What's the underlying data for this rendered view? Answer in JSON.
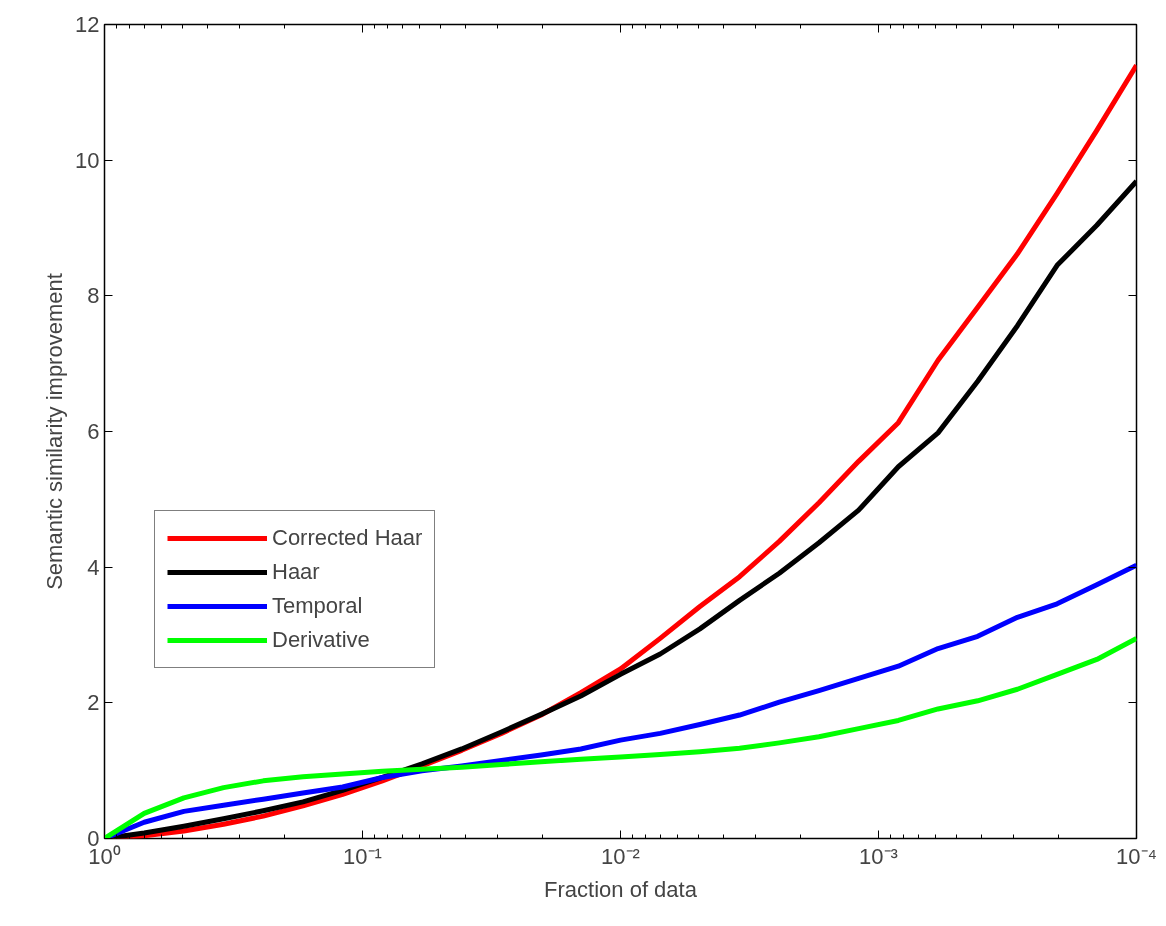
{
  "chart_data": {
    "type": "line",
    "xlabel": "Fraction of data",
    "ylabel": "Semantic similarity improvement",
    "log": "x",
    "xlim": [
      1,
      0.0001
    ],
    "ylim": [
      0,
      12
    ],
    "xticks": [
      {
        "value": 1,
        "label": "10⁰"
      },
      {
        "value": 0.1,
        "label": "10⁻¹"
      },
      {
        "value": 0.01,
        "label": "10⁻²"
      },
      {
        "value": 0.001,
        "label": "10⁻³"
      },
      {
        "value": 0.0001,
        "label": "10⁻⁴"
      }
    ],
    "yticks": [
      0,
      2,
      4,
      6,
      8,
      10,
      12
    ],
    "grid": false,
    "legend": "left",
    "line_style": "solid",
    "marker": "none",
    "x": [
      1,
      0.7017,
      0.4924,
      0.3455,
      0.2424,
      0.1701,
      0.1194,
      0.08377,
      0.05878,
      0.04125,
      0.02894,
      0.02031,
      0.01425,
      0.01,
      0.007017,
      0.004924,
      0.003455,
      0.002424,
      0.001701,
      0.001194,
      0.0008377,
      0.0005878,
      0.0004125,
      0.0002894,
      0.0002031,
      0.0001425,
      0.0001
    ],
    "series": [
      {
        "name": "Corrected Haar",
        "color": "#ff0000",
        "values": [
          0,
          0.04,
          0.11,
          0.21,
          0.33,
          0.48,
          0.65,
          0.85,
          1.07,
          1.3,
          1.55,
          1.82,
          2.15,
          2.5,
          2.95,
          3.42,
          3.86,
          4.38,
          4.95,
          5.56,
          6.13,
          7.05,
          7.83,
          8.62,
          9.51,
          10.44,
          11.4
        ]
      },
      {
        "name": "Haar",
        "color": "#000000",
        "values": [
          0,
          0.08,
          0.18,
          0.29,
          0.41,
          0.54,
          0.71,
          0.9,
          1.1,
          1.32,
          1.57,
          1.83,
          2.1,
          2.42,
          2.72,
          3.09,
          3.51,
          3.91,
          4.36,
          4.84,
          5.48,
          5.98,
          6.74,
          7.56,
          8.45,
          9.04,
          9.69
        ]
      },
      {
        "name": "Temporal",
        "color": "#0000ff",
        "values": [
          0,
          0.24,
          0.4,
          0.49,
          0.58,
          0.67,
          0.76,
          0.9,
          1.0,
          1.07,
          1.15,
          1.23,
          1.32,
          1.45,
          1.55,
          1.68,
          1.82,
          2.01,
          2.18,
          2.36,
          2.54,
          2.8,
          2.98,
          3.26,
          3.46,
          3.74,
          4.03
        ]
      },
      {
        "name": "Derivative",
        "color": "#00ff00",
        "values": [
          0,
          0.37,
          0.6,
          0.75,
          0.85,
          0.91,
          0.95,
          0.99,
          1.02,
          1.05,
          1.09,
          1.13,
          1.17,
          1.2,
          1.24,
          1.28,
          1.33,
          1.41,
          1.5,
          1.62,
          1.74,
          1.91,
          2.03,
          2.2,
          2.42,
          2.64,
          2.95
        ]
      }
    ]
  }
}
